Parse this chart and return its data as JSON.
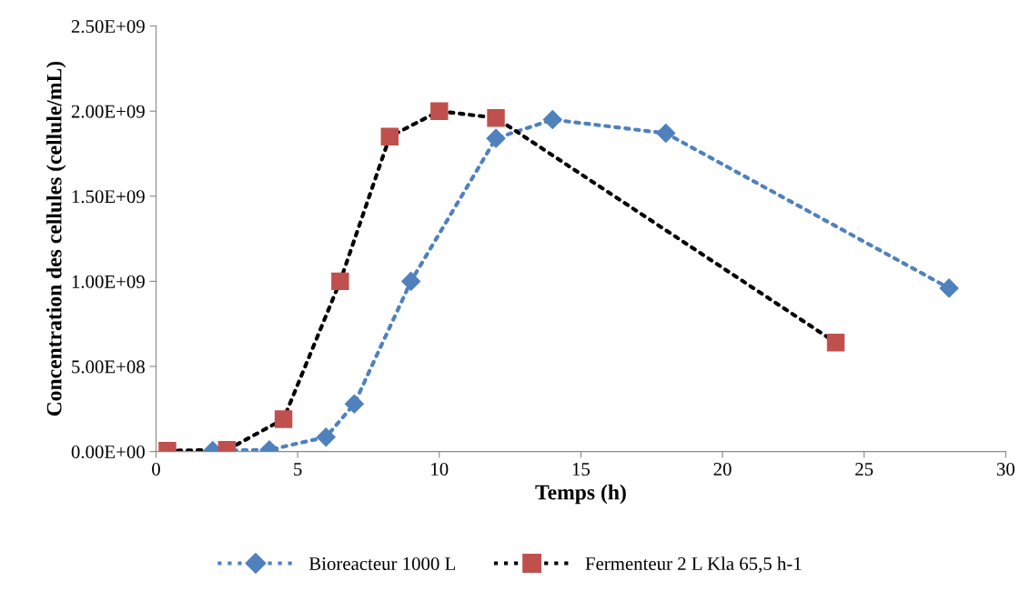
{
  "chart_data": {
    "type": "line",
    "xlabel": "Temps (h)",
    "ylabel": "Concentration des cellules (cellule/mL)",
    "series": [
      {
        "name": "Bioreacteur 1000 L",
        "color": "#4f81bd",
        "marker": "diamond",
        "x": [
          2,
          4,
          6,
          7,
          9,
          12,
          14,
          18,
          28
        ],
        "values": [
          5000000,
          10000000,
          85000000,
          280000000,
          1000000000,
          1840000000,
          1950000000,
          1870000000,
          960000000
        ]
      },
      {
        "name": "Fermenteur 2 L Kla 65,5 h-1",
        "color": "#000000",
        "colors": [
          "#c0504d",
          "#c0504d",
          "#c0504d",
          "#c0504d",
          "#c0504d",
          "#c0504d",
          "#c0504d",
          "#c0504d"
        ],
        "marker": "square",
        "x": [
          0.4,
          2.5,
          4.5,
          6.5,
          8.25,
          10,
          12,
          24
        ],
        "values": [
          5000000,
          10000000,
          190000000,
          1000000000,
          1850000000,
          2000000000,
          1960000000,
          640000000
        ]
      }
    ],
    "xlim": [
      0,
      30
    ],
    "xticks": [
      0,
      5,
      10,
      15,
      20,
      25,
      30
    ],
    "ylim": [
      0,
      2500000000
    ],
    "yticks": [
      {
        "value": 0,
        "label": "0.00E+00"
      },
      {
        "value": 500000000,
        "label": "5.00E+08"
      },
      {
        "value": 1000000000,
        "label": "1.00E+09"
      },
      {
        "value": 1500000000,
        "label": "1.50E+09"
      },
      {
        "value": 2000000000,
        "label": "2.00E+09"
      },
      {
        "value": 2500000000,
        "label": "2.50E+09"
      }
    ],
    "line_style": "dotted",
    "grid": false,
    "legend": "bottom"
  }
}
